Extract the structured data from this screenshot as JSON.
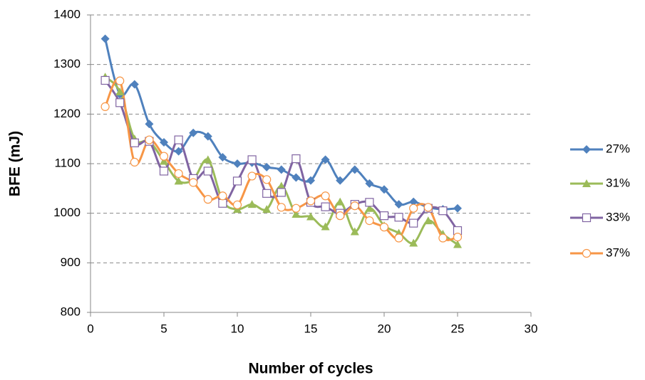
{
  "chart_data": {
    "type": "line",
    "x_label": "Number of cycles",
    "y_label": "BFE (mJ)",
    "x": [
      1,
      2,
      3,
      4,
      5,
      6,
      7,
      8,
      9,
      10,
      11,
      12,
      13,
      14,
      15,
      16,
      17,
      18,
      19,
      20,
      21,
      22,
      23,
      24,
      25
    ],
    "series": [
      {
        "name": "27%",
        "color": "#4f81bd",
        "marker": "diamond",
        "values": [
          1352,
          1240,
          1260,
          1180,
          1143,
          1125,
          1162,
          1155,
          1113,
          1100,
          1102,
          1093,
          1088,
          1072,
          1066,
          1108,
          1066,
          1088,
          1060,
          1048,
          1018,
          1023,
          1012,
          1008,
          1010
        ]
      },
      {
        "name": "31%",
        "color": "#9bbb59",
        "marker": "triangle",
        "values": [
          1275,
          1245,
          1150,
          1145,
          1105,
          1065,
          1068,
          1108,
          1025,
          1008,
          1018,
          1008,
          1055,
          998,
          993,
          973,
          1023,
          963,
          1010,
          975,
          960,
          940,
          985,
          958,
          937
        ]
      },
      {
        "name": "33%",
        "color": "#8064a2",
        "marker": "square",
        "values": [
          1268,
          1223,
          1142,
          1145,
          1085,
          1148,
          1070,
          1085,
          1020,
          1065,
          1108,
          1040,
          1042,
          1110,
          1022,
          1013,
          1000,
          1018,
          1022,
          995,
          992,
          980,
          1010,
          1005,
          965
        ]
      },
      {
        "name": "37%",
        "color": "#f79646",
        "marker": "circle",
        "values": [
          1215,
          1267,
          1103,
          1148,
          1115,
          1080,
          1062,
          1028,
          1035,
          1017,
          1075,
          1068,
          1012,
          1010,
          1025,
          1035,
          995,
          1015,
          985,
          972,
          950,
          1010,
          1012,
          950,
          952
        ]
      }
    ],
    "xlim": [
      0,
      30
    ],
    "xticks": [
      0,
      5,
      10,
      15,
      20,
      25,
      30
    ],
    "ylim": [
      800,
      1400
    ],
    "yticks": [
      800,
      900,
      1000,
      1100,
      1200,
      1300,
      1400
    ],
    "grid": true,
    "legend": "right"
  }
}
